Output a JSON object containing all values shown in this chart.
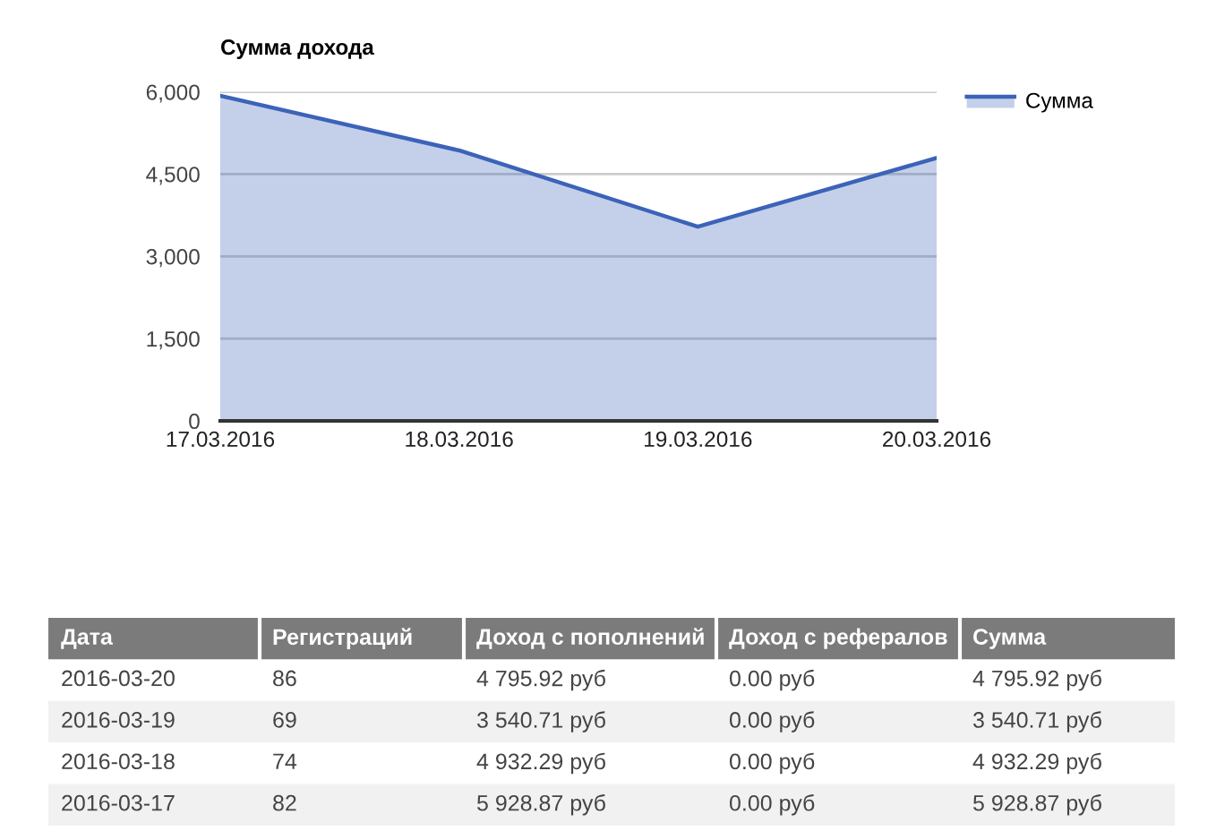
{
  "chart_data": [
    {
      "type": "area",
      "title": "Сумма дохода",
      "categories": [
        "17.03.2016",
        "18.03.2016",
        "19.03.2016",
        "20.03.2016"
      ],
      "series": [
        {
          "name": "Сумма",
          "color": "#3c63b8",
          "values": [
            5928.87,
            4932.29,
            3540.71,
            4795.92
          ]
        }
      ],
      "ylim": [
        0,
        6000
      ],
      "yticks": [
        0,
        {
          "value": 1500,
          "label": "1,500"
        },
        {
          "value": 3000,
          "label": "3,000"
        },
        {
          "value": 4500,
          "label": "4,500"
        },
        {
          "value": 6000,
          "label": "6,000"
        }
      ],
      "grid": "y",
      "legend": "right"
    },
    {
      "type": "other",
      "categories": [
        "Дата",
        "Регистраций",
        "Доход с пополнений",
        "Доход с рефералов",
        "Сумма"
      ],
      "cell_labels": [
        [
          "2016-03-20",
          "86",
          "4 795.92 руб",
          "0.00 руб",
          "4 795.92 руб"
        ],
        [
          "2016-03-19",
          "69",
          "3 540.71 руб",
          "0.00 руб",
          "3 540.71 руб"
        ],
        [
          "2016-03-18",
          "74",
          "4 932.29 руб",
          "0.00 руб",
          "4 932.29 руб"
        ],
        [
          "2016-03-17",
          "82",
          "5 928.87 руб",
          "0.00 руб",
          "5 928.87 руб"
        ]
      ]
    }
  ]
}
